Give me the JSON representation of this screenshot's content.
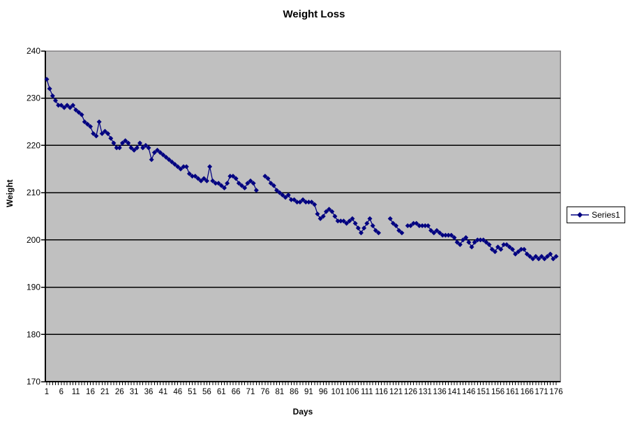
{
  "title": "Weight Loss",
  "legend": {
    "position": "right"
  },
  "colors": {
    "series": "#000080",
    "plot_background": "#c0c0c0",
    "plot_border": "#848284",
    "gridline": "#000000",
    "axis_line": "#000000",
    "page_background": "#ffffff",
    "legend_border": "#000000",
    "text": "#000000"
  },
  "chart_data": {
    "type": "line",
    "title": "Weight Loss",
    "xlabel": "Days",
    "ylabel": "Weight",
    "ylim": [
      170,
      240
    ],
    "y_tick_step": 10,
    "y_ticks": [
      240,
      230,
      220,
      210,
      200,
      190,
      180,
      170
    ],
    "x_range": [
      1,
      176
    ],
    "x_tick_labels": [
      1,
      6,
      11,
      16,
      21,
      26,
      31,
      36,
      41,
      46,
      51,
      56,
      61,
      66,
      71,
      76,
      81,
      86,
      91,
      96,
      101,
      106,
      111,
      116,
      121,
      126,
      131,
      136,
      141,
      146,
      151,
      156,
      161,
      166,
      171,
      176
    ],
    "grid": true,
    "legend_position": "right",
    "marker": "diamond",
    "series": [
      {
        "name": "Series1",
        "x_start": 1,
        "values": [
          234,
          232,
          230.5,
          229.5,
          228.5,
          228.5,
          228,
          228.5,
          228,
          228.5,
          227.5,
          227,
          226.5,
          225,
          224.5,
          224,
          222.5,
          222,
          225,
          222.5,
          223,
          222.5,
          221.5,
          220.5,
          219.5,
          219.5,
          220.5,
          221,
          220.5,
          219.5,
          219,
          219.5,
          220.5,
          219.5,
          220,
          219.5,
          217,
          218.5,
          219,
          218.5,
          218,
          217.5,
          217,
          216.5,
          216,
          215.5,
          215,
          215.5,
          215.5,
          214,
          213.5,
          213.5,
          213,
          212.5,
          213,
          212.5,
          215.5,
          212.5,
          212,
          212,
          211.5,
          211,
          212,
          213.5,
          213.5,
          213,
          212,
          211.5,
          211,
          212,
          212.5,
          212,
          210.5,
          null,
          null,
          213.5,
          213,
          212,
          211.5,
          210.5,
          210,
          209.5,
          209,
          209.5,
          208.5,
          208.5,
          208,
          208,
          208.5,
          208,
          208,
          208,
          207.5,
          205.5,
          204.5,
          205,
          206,
          206.5,
          206,
          205,
          204,
          204,
          204,
          203.5,
          204,
          204.5,
          203.5,
          202.5,
          201.5,
          202.5,
          203.5,
          204.5,
          203,
          202,
          201.5,
          null,
          null,
          null,
          204.5,
          203.5,
          203,
          202,
          201.5,
          null,
          203,
          203,
          203.5,
          203.5,
          203,
          203,
          203,
          203,
          202,
          201.5,
          202,
          201.5,
          201,
          201,
          201,
          201,
          200.5,
          199.5,
          199,
          200,
          200.5,
          199.5,
          198.5,
          199.5,
          200,
          200,
          200,
          199.5,
          199,
          198,
          197.5,
          198.5,
          198,
          199,
          199,
          198.5,
          198,
          197,
          197.5,
          198,
          198,
          197,
          196.5,
          196,
          196.5,
          196,
          196.5,
          196,
          196.5,
          197,
          196,
          196.5
        ]
      }
    ]
  }
}
